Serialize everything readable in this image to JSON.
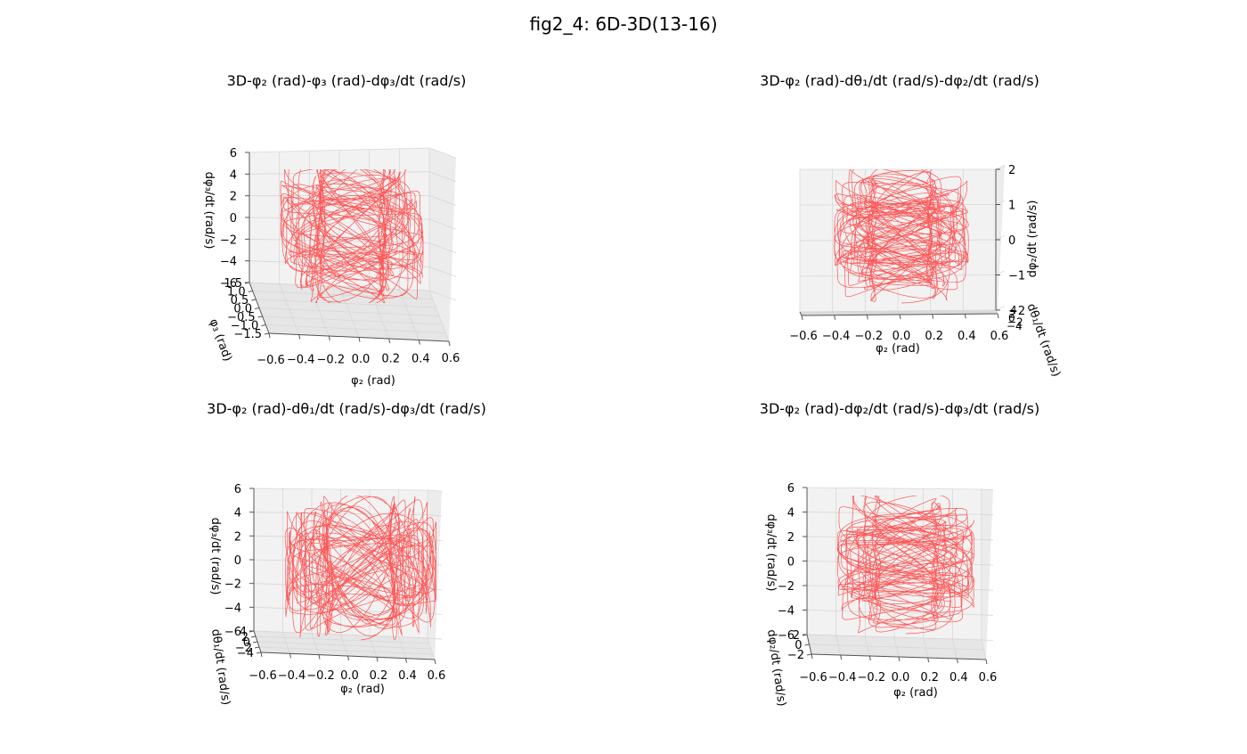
{
  "figure": {
    "title": "fig2_4: 6D-3D(13-16)"
  },
  "chart_data": [
    {
      "type": "line",
      "projection": "3d",
      "title": "3D-φ₂ (rad)-φ₃ (rad)-dφ₃/dt (rad/s)",
      "xlabel": "φ₂ (rad)",
      "ylabel": "φ₃ (rad)",
      "zlabel": "dφ₃/dt (rad/s)",
      "xticks": [
        "−0.6",
        "−0.4",
        "−0.2",
        "0.0",
        "0.2",
        "0.4",
        "0.6"
      ],
      "yticks": [
        "−1.5",
        "−1.0",
        "−0.5",
        "0.0",
        "0.5",
        "1.0",
        "1.5"
      ],
      "zticks": [
        "−6",
        "−4",
        "−2",
        "0",
        "2",
        "4",
        "6"
      ],
      "xlim": [
        -0.6,
        0.6
      ],
      "ylim": [
        -1.5,
        1.5
      ],
      "zlim": [
        -6,
        6
      ],
      "color": "#ff3b3b"
    },
    {
      "type": "line",
      "projection": "3d",
      "title": "3D-φ₂ (rad)-dθ₁/dt (rad/s)-dφ₂/dt (rad/s)",
      "xlabel": "φ₂ (rad)",
      "ylabel": "dθ₁/dt (rad/s)",
      "zlabel": "dφ₂/dt (rad/s)",
      "xticks": [
        "−0.6",
        "−0.4",
        "−0.2",
        "0.0",
        "0.2",
        "0.4",
        "0.6"
      ],
      "yticks": [
        "−4",
        "−2",
        "0",
        "2",
        "4"
      ],
      "zticks": [
        "−2",
        "−1",
        "0",
        "1",
        "2"
      ],
      "xlim": [
        -0.6,
        0.6
      ],
      "ylim": [
        -4,
        4
      ],
      "zlim": [
        -2.5,
        2.5
      ],
      "color": "#ff3b3b"
    },
    {
      "type": "line",
      "projection": "3d",
      "title": "3D-φ₂ (rad)-dθ₁/dt (rad/s)-dφ₃/dt (rad/s)",
      "xlabel": "φ₂ (rad)",
      "ylabel": "dθ₁/dt (rad/s)",
      "zlabel": "dφ₃/dt (rad/s)",
      "xticks": [
        "−0.6",
        "−0.4",
        "−0.2",
        "0.0",
        "0.2",
        "0.4",
        "0.6"
      ],
      "yticks": [
        "−4",
        "−2",
        "0",
        "2",
        "4"
      ],
      "zticks": [
        "−6",
        "−4",
        "−2",
        "0",
        "2",
        "4",
        "6"
      ],
      "xlim": [
        -0.6,
        0.6
      ],
      "ylim": [
        -4,
        4
      ],
      "zlim": [
        -6,
        6
      ],
      "color": "#ff3b3b"
    },
    {
      "type": "line",
      "projection": "3d",
      "title": "3D-φ₂ (rad)-dφ₂/dt (rad/s)-dφ₃/dt (rad/s)",
      "xlabel": "φ₂ (rad)",
      "ylabel": "dφ₂/dt (rad/s)",
      "zlabel": "dφ₃/dt (rad/s)",
      "xticks": [
        "−0.6",
        "−0.4",
        "−0.2",
        "0.0",
        "0.2",
        "0.4",
        "0.6"
      ],
      "yticks": [
        "−2",
        "0",
        "2"
      ],
      "zticks": [
        "−6",
        "−4",
        "−2",
        "0",
        "2",
        "4",
        "6"
      ],
      "xlim": [
        -0.6,
        0.6
      ],
      "ylim": [
        -2.5,
        2.5
      ],
      "zlim": [
        -6,
        6
      ],
      "color": "#ff3b3b"
    }
  ]
}
